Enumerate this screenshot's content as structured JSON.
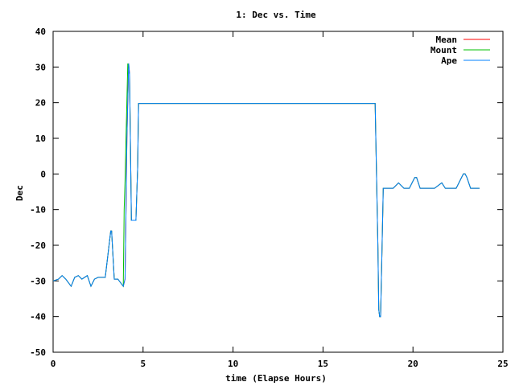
{
  "chart_data": {
    "type": "line",
    "title": "1: Dec vs. Time",
    "xlabel": "time (Elapse Hours)",
    "ylabel": "Dec",
    "xlim": [
      0,
      25
    ],
    "ylim": [
      -50,
      40
    ],
    "x_ticks": [
      0,
      5,
      10,
      15,
      20,
      25
    ],
    "y_ticks": [
      -50,
      -40,
      -30,
      -20,
      -10,
      0,
      10,
      20,
      30,
      40
    ],
    "x_tick_labels": [
      "0",
      "5",
      "10",
      "15",
      "20",
      "25"
    ],
    "y_tick_labels": [
      "-50",
      "-40",
      "-30",
      "-20",
      "-10",
      "0",
      "10",
      "20",
      "30",
      "40"
    ],
    "grid": false,
    "legend_position": "top-right",
    "series": [
      {
        "name": "Mean",
        "color": "#ff0000",
        "x": [
          0,
          0.3,
          0.5,
          0.7,
          1.0,
          1.2,
          1.4,
          1.6,
          1.9,
          2.1,
          2.3,
          2.5,
          2.9,
          3.2,
          3.25,
          3.4,
          3.45,
          3.6,
          3.9,
          4.0,
          4.05,
          4.1,
          4.2,
          4.25,
          4.35,
          4.45,
          4.6,
          4.7,
          4.75,
          17.9,
          18.05,
          18.1,
          18.15,
          18.2,
          18.35,
          18.4,
          18.9,
          19.2,
          19.5,
          19.8,
          20.1,
          20.2,
          20.4,
          20.8,
          21.2,
          21.6,
          21.8,
          22.0,
          22.4,
          22.8,
          22.9,
          23.0,
          23.2,
          23.7
        ],
        "y": [
          -30,
          -29.5,
          -28.5,
          -29.5,
          -31.5,
          -29,
          -28.5,
          -29.5,
          -28.5,
          -31.5,
          -29.5,
          -29,
          -29,
          -16,
          -16,
          -29.5,
          -29.5,
          -29.5,
          -31.5,
          -29.5,
          -10,
          10,
          31,
          28,
          -13,
          -13,
          -13,
          2,
          19.8,
          19.8,
          -20,
          -38,
          -40,
          -40,
          -4,
          -4,
          -4,
          -2.5,
          -4,
          -4,
          -1,
          -1,
          -4,
          -4,
          -4,
          -2.5,
          -4,
          -4,
          -4,
          0,
          0,
          -1,
          -4,
          -4
        ]
      },
      {
        "name": "Mount",
        "color": "#00c000",
        "x": [
          0,
          0.3,
          0.5,
          0.7,
          1.0,
          1.2,
          1.4,
          1.6,
          1.9,
          2.1,
          2.3,
          2.5,
          2.9,
          3.2,
          3.25,
          3.4,
          3.45,
          3.6,
          3.9,
          3.95,
          4.0,
          4.05,
          4.15,
          4.25,
          4.35,
          4.45,
          4.6,
          4.7,
          4.75,
          17.9,
          18.05,
          18.1,
          18.15,
          18.2,
          18.35,
          18.4,
          18.9,
          19.2,
          19.5,
          19.8,
          20.1,
          20.2,
          20.4,
          20.8,
          21.2,
          21.6,
          21.8,
          22.0,
          22.4,
          22.8,
          22.9,
          23.0,
          23.2,
          23.7
        ],
        "y": [
          -30,
          -29.5,
          -28.5,
          -29.5,
          -31.5,
          -29,
          -28.5,
          -29.5,
          -28.5,
          -31.5,
          -29.5,
          -29,
          -29,
          -16,
          -16,
          -29.5,
          -29.5,
          -29.5,
          -31.5,
          -10,
          -2,
          10,
          31,
          28,
          -13,
          -13,
          -13,
          2,
          19.8,
          19.8,
          -20,
          -38,
          -40,
          -40,
          -4,
          -4,
          -4,
          -2.5,
          -4,
          -4,
          -1,
          -1,
          -4,
          -4,
          -4,
          -2.5,
          -4,
          -4,
          -4,
          0,
          0,
          -1,
          -4,
          -4
        ]
      },
      {
        "name": "Ape",
        "color": "#0080ff",
        "x": [
          0,
          0.3,
          0.5,
          0.7,
          1.0,
          1.2,
          1.4,
          1.6,
          1.9,
          2.1,
          2.3,
          2.5,
          2.9,
          3.2,
          3.25,
          3.4,
          3.45,
          3.6,
          3.9,
          4.0,
          4.05,
          4.1,
          4.2,
          4.25,
          4.35,
          4.45,
          4.6,
          4.7,
          4.75,
          17.9,
          18.05,
          18.1,
          18.15,
          18.2,
          18.35,
          18.4,
          18.9,
          19.2,
          19.5,
          19.8,
          20.1,
          20.2,
          20.4,
          20.8,
          21.2,
          21.6,
          21.8,
          22.0,
          22.4,
          22.8,
          22.9,
          23.0,
          23.2,
          23.7
        ],
        "y": [
          -30,
          -29.5,
          -28.5,
          -29.5,
          -31.5,
          -29,
          -28.5,
          -29.5,
          -28.5,
          -31.5,
          -29.5,
          -29,
          -29,
          -16,
          -16,
          -29.5,
          -29.5,
          -29.5,
          -31.5,
          -29.5,
          -10,
          10,
          31,
          28,
          -13,
          -13,
          -13,
          2,
          19.8,
          19.8,
          -20,
          -38,
          -40,
          -40,
          -4,
          -4,
          -4,
          -2.5,
          -4,
          -4,
          -1,
          -1,
          -4,
          -4,
          -4,
          -2.5,
          -4,
          -4,
          -4,
          0,
          0,
          -1,
          -4,
          -4
        ]
      }
    ]
  }
}
